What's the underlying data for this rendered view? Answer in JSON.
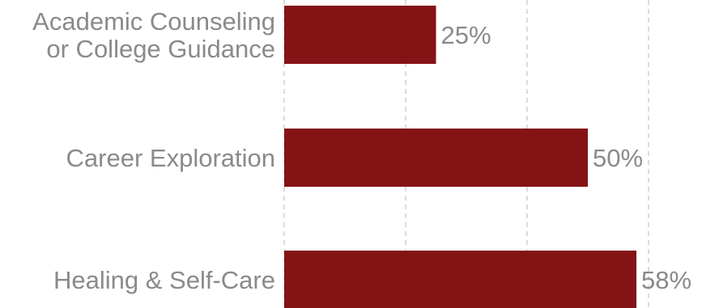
{
  "chart_data": {
    "type": "bar",
    "orientation": "horizontal",
    "categories": [
      [
        "Academic Counseling",
        "or College Guidance"
      ],
      [
        "Career Exploration"
      ],
      [
        "Healing & Self-Care"
      ]
    ],
    "values": [
      25,
      50,
      58
    ],
    "value_labels": [
      "25%",
      "50%",
      "58%"
    ],
    "xlim": [
      0,
      60
    ],
    "grid": "vertical dashed",
    "colors": {
      "bar": "#841316",
      "text": "#8a8a8a",
      "grid": "#c8c8c8"
    }
  }
}
